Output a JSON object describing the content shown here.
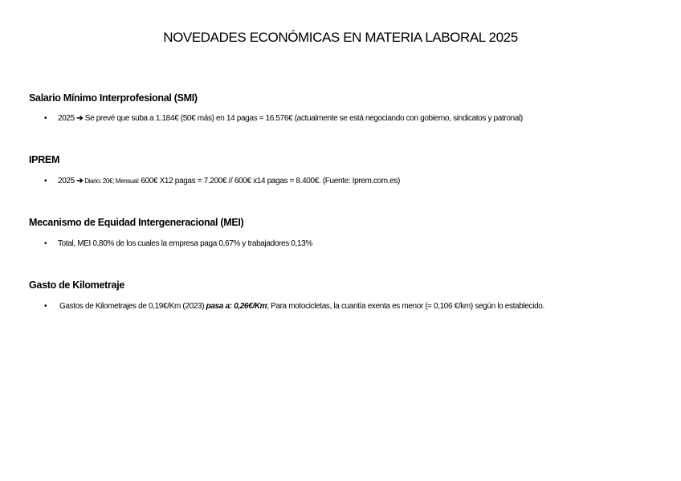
{
  "title": "NOVEDADES ECONÓMICAS EN MATERIA LABORAL 2025",
  "sections": [
    {
      "heading": "Salario Mínimo Interprofesional (SMI)",
      "bullet": {
        "year": "2025",
        "arrow": "➔",
        "text": " Se prevé que suba a 1.184€ (50€ más) en 14 pagas = 16.576€ (actualmente se está negociando con gobierno, sindicatos y patronal)"
      }
    },
    {
      "heading": "IPREM",
      "bullet": {
        "year": "2025",
        "arrow": "➔",
        "small": " Diario: 20€; Mensual: ",
        "text": "600€ X12 pagas = 7.200€ // 600€ x14 pagas = 8.400€. (Fuente: Iprem.com.es)"
      }
    },
    {
      "heading": "Mecanismo de Equidad Intergeneracional (MEI)",
      "bullet": {
        "text": "Total, MEI 0,80% de los cuales la empresa paga 0,67% y trabajadores 0,13%"
      }
    },
    {
      "heading": "Gasto de Kilometraje",
      "bullet": {
        "text": "Gastos de Kilometrajes de 0,19€/Km (2023) ",
        "emph": "pasa a: 0,26€/Km",
        "text2": "; Para motocicletas, la cuantía exenta es menor (≈ 0,106 €/km) según lo establecido."
      }
    }
  ]
}
